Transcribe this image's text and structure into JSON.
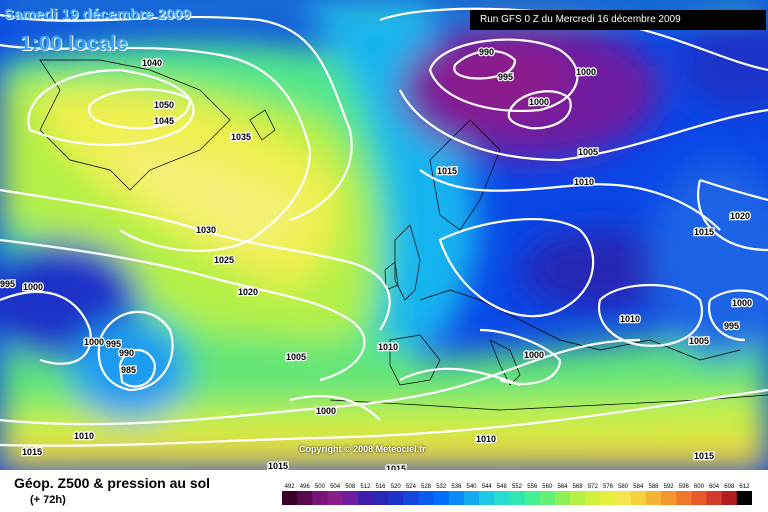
{
  "title": {
    "date": "Samedi 19 décembre 2009",
    "time": "1:00 locale"
  },
  "run_info": "Run GFS 0 Z du Mercredi 16 décembre 2009",
  "copyright": "Copyright © 2008 Meteociel.fr",
  "footer": {
    "product": "Géop. Z500 & pression au sol",
    "range": "(+ 72h)"
  },
  "colorbar": {
    "labels": [
      "492",
      "496",
      "500",
      "504",
      "508",
      "512",
      "516",
      "520",
      "524",
      "528",
      "532",
      "536",
      "540",
      "544",
      "548",
      "552",
      "556",
      "560",
      "564",
      "568",
      "572",
      "576",
      "580",
      "584",
      "588",
      "592",
      "596",
      "600",
      "604",
      "608",
      "612"
    ],
    "colors": [
      "#3c0028",
      "#5a0a50",
      "#781478",
      "#8c1e8c",
      "#6e1ea0",
      "#3c1eaa",
      "#2828b4",
      "#1e32c8",
      "#1446dc",
      "#0a5af0",
      "#006ef8",
      "#0a8cf8",
      "#14aaf0",
      "#1ec8e6",
      "#28dcd2",
      "#32e6b4",
      "#46f096",
      "#64f078",
      "#8cf05a",
      "#b4f046",
      "#d2f03c",
      "#e6f03c",
      "#f5e650",
      "#f5d23c",
      "#f5b432",
      "#f5962d",
      "#f0782d",
      "#e65a28",
      "#d23c28",
      "#b41e1e",
      "#000000"
    ]
  },
  "isobar_labels": [
    "990",
    "995",
    "1000",
    "1005",
    "1010",
    "1015",
    "1020",
    "1025",
    "1030",
    "1035",
    "1040",
    "1045",
    "1050"
  ],
  "isobar_markers": [
    {
      "id": "a",
      "value": "990"
    },
    {
      "id": "b",
      "value": "995"
    },
    {
      "id": "c",
      "value": "1000"
    },
    {
      "id": "d",
      "value": "1000"
    },
    {
      "id": "e",
      "value": "1005"
    },
    {
      "id": "f",
      "value": "1010"
    },
    {
      "id": "g",
      "value": "1015"
    },
    {
      "id": "h",
      "value": "1020"
    },
    {
      "id": "i",
      "value": "1015"
    },
    {
      "id": "j",
      "value": "1040"
    },
    {
      "id": "k",
      "value": "1050"
    },
    {
      "id": "l",
      "value": "1045"
    },
    {
      "id": "m",
      "value": "1035"
    },
    {
      "id": "n",
      "value": "1030"
    },
    {
      "id": "o",
      "value": "1025"
    },
    {
      "id": "p",
      "value": "1020"
    },
    {
      "id": "q",
      "value": "1000"
    },
    {
      "id": "r",
      "value": "995"
    },
    {
      "id": "s",
      "value": "1000"
    },
    {
      "id": "t",
      "value": "995"
    },
    {
      "id": "u",
      "value": "990"
    },
    {
      "id": "v",
      "value": "985"
    },
    {
      "id": "w",
      "value": "1005"
    },
    {
      "id": "x",
      "value": "1010"
    },
    {
      "id": "y",
      "value": "1000"
    },
    {
      "id": "z",
      "value": "1000"
    },
    {
      "id": "aa",
      "value": "1010"
    },
    {
      "id": "ab",
      "value": "1005"
    },
    {
      "id": "ac",
      "value": "1000"
    },
    {
      "id": "ad",
      "value": "995"
    },
    {
      "id": "ae",
      "value": "1010"
    },
    {
      "id": "af",
      "value": "1015"
    },
    {
      "id": "ag",
      "value": "1015"
    },
    {
      "id": "ah",
      "value": "1010"
    },
    {
      "id": "ai",
      "value": "1015"
    },
    {
      "id": "aj",
      "value": "1015"
    }
  ]
}
